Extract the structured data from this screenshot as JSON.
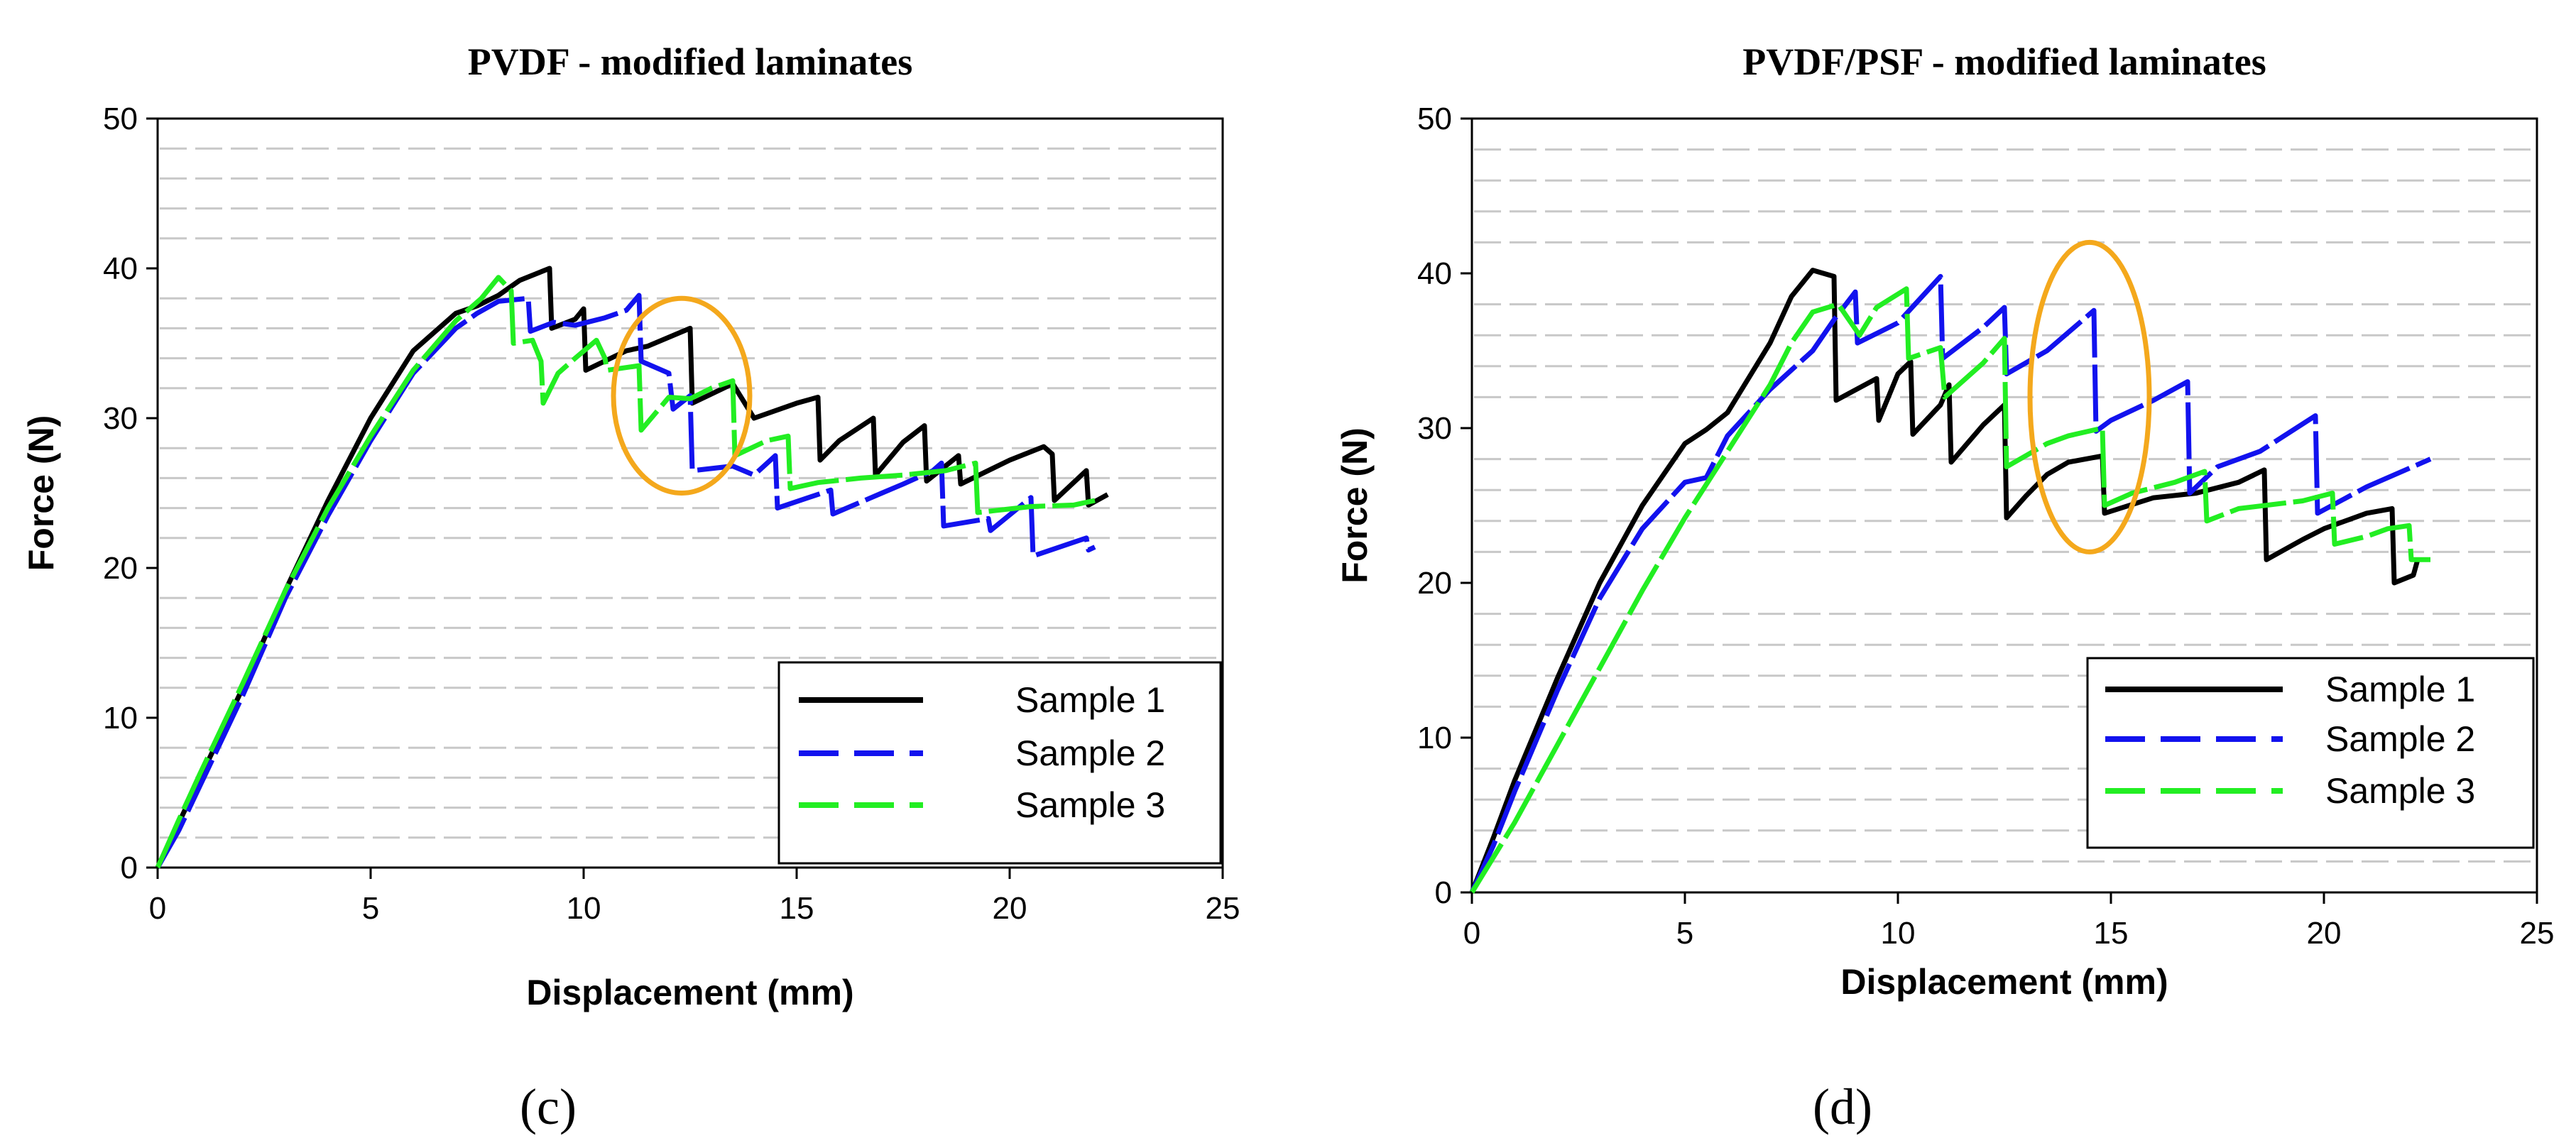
{
  "chart_data": [
    {
      "type": "line",
      "panel_label": "(c)",
      "title": "PVDF - modified laminates",
      "xlabel": "Displacement (mm)",
      "ylabel": "Force (N)",
      "xlim": [
        0,
        25
      ],
      "ylim": [
        0,
        50
      ],
      "xticks": [
        0,
        5,
        10,
        15,
        20,
        25
      ],
      "yticks": [
        0,
        10,
        20,
        30,
        40,
        50
      ],
      "grid": "horizontal dashed",
      "legend_position": "bottom-right",
      "highlight_ellipse": {
        "cx": 12.3,
        "cy": 31.5,
        "rx": 1.6,
        "ry": 6.5,
        "color": "#f4a81c"
      },
      "series": [
        {
          "name": "Sample 1",
          "color": "#000000",
          "dash": "solid",
          "points": [
            [
              0,
              0
            ],
            [
              0.5,
              3
            ],
            [
              1,
              6
            ],
            [
              2,
              12
            ],
            [
              3,
              18.5
            ],
            [
              4,
              24.5
            ],
            [
              5,
              30
            ],
            [
              6,
              34.5
            ],
            [
              7,
              37
            ],
            [
              7.5,
              37.5
            ],
            [
              8,
              38.2
            ],
            [
              8.5,
              39.2
            ],
            [
              9.2,
              40
            ],
            [
              9.25,
              36
            ],
            [
              9.8,
              36.6
            ],
            [
              10,
              37.3
            ],
            [
              10.05,
              33.2
            ],
            [
              11,
              34.5
            ],
            [
              11.5,
              34.8
            ],
            [
              12.5,
              36
            ],
            [
              12.55,
              31
            ],
            [
              13.5,
              32.3
            ],
            [
              14,
              30
            ],
            [
              15,
              31
            ],
            [
              15.5,
              31.4
            ],
            [
              15.55,
              27.2
            ],
            [
              16,
              28.5
            ],
            [
              16.8,
              30
            ],
            [
              16.85,
              26.2
            ],
            [
              17.5,
              28.4
            ],
            [
              18,
              29.5
            ],
            [
              18.05,
              25.8
            ],
            [
              18.8,
              27.5
            ],
            [
              18.85,
              25.6
            ],
            [
              20,
              27.2
            ],
            [
              20.8,
              28.1
            ],
            [
              21,
              27.6
            ],
            [
              21.05,
              24.5
            ],
            [
              21.8,
              26.5
            ],
            [
              21.85,
              24.2
            ],
            [
              22.3,
              24.9
            ]
          ]
        },
        {
          "name": "Sample 2",
          "color": "#1212ee",
          "dash": "dash",
          "points": [
            [
              0,
              0
            ],
            [
              0.5,
              2.5
            ],
            [
              1,
              5.5
            ],
            [
              2,
              11.5
            ],
            [
              3,
              18
            ],
            [
              4,
              23.5
            ],
            [
              5,
              28.5
            ],
            [
              6,
              33
            ],
            [
              7,
              36
            ],
            [
              7.5,
              37
            ],
            [
              8,
              37.8
            ],
            [
              8.7,
              38
            ],
            [
              8.75,
              35.8
            ],
            [
              9.3,
              36.4
            ],
            [
              9.8,
              36.2
            ],
            [
              10.5,
              36.7
            ],
            [
              11,
              37.2
            ],
            [
              11.3,
              38.2
            ],
            [
              11.35,
              33.8
            ],
            [
              12,
              33
            ],
            [
              12.1,
              30.6
            ],
            [
              12.5,
              31.5
            ],
            [
              12.55,
              26.5
            ],
            [
              13.5,
              26.8
            ],
            [
              14,
              26.2
            ],
            [
              14.5,
              27.5
            ],
            [
              14.55,
              24
            ],
            [
              15.8,
              25.2
            ],
            [
              15.85,
              23.6
            ],
            [
              17,
              25
            ],
            [
              17.5,
              25.6
            ],
            [
              18.2,
              26.5
            ],
            [
              18.4,
              27
            ],
            [
              18.45,
              22.8
            ],
            [
              19.5,
              23.3
            ],
            [
              19.55,
              22.5
            ],
            [
              20.5,
              24.7
            ],
            [
              20.55,
              20.8
            ],
            [
              21.8,
              22
            ],
            [
              21.85,
              21.2
            ],
            [
              22,
              21.4
            ]
          ]
        },
        {
          "name": "Sample 3",
          "color": "#22ee22",
          "dash": "dash",
          "points": [
            [
              0,
              0
            ],
            [
              0.5,
              3.2
            ],
            [
              1,
              6.3
            ],
            [
              2,
              12.3
            ],
            [
              3,
              18.5
            ],
            [
              4,
              24
            ],
            [
              5,
              28.8
            ],
            [
              6,
              33.2
            ],
            [
              7,
              36.5
            ],
            [
              7.6,
              38
            ],
            [
              8,
              39.4
            ],
            [
              8.3,
              38.5
            ],
            [
              8.35,
              35
            ],
            [
              8.8,
              35.2
            ],
            [
              9,
              33.8
            ],
            [
              9.05,
              31
            ],
            [
              9.4,
              33
            ],
            [
              9.8,
              34
            ],
            [
              10.3,
              35.2
            ],
            [
              10.5,
              34
            ],
            [
              10.55,
              33.2
            ],
            [
              11.3,
              33.5
            ],
            [
              11.35,
              29.2
            ],
            [
              12,
              31.4
            ],
            [
              12.5,
              31.3
            ],
            [
              13,
              32
            ],
            [
              13.5,
              32.5
            ],
            [
              13.55,
              27.5
            ],
            [
              14.3,
              28.5
            ],
            [
              14.8,
              28.8
            ],
            [
              14.85,
              25.3
            ],
            [
              15.5,
              25.7
            ],
            [
              16.5,
              26
            ],
            [
              17.5,
              26.2
            ],
            [
              18.5,
              26.5
            ],
            [
              19.2,
              27
            ],
            [
              19.25,
              23.7
            ],
            [
              20.5,
              24.1
            ],
            [
              21.5,
              24.2
            ],
            [
              22,
              24.5
            ]
          ]
        }
      ]
    },
    {
      "type": "line",
      "panel_label": "(d)",
      "title": "PVDF/PSF - modified laminates",
      "xlabel": "Displacement (mm)",
      "ylabel": "Force (N)",
      "xlim": [
        0,
        25
      ],
      "ylim": [
        0,
        50
      ],
      "xticks": [
        0,
        5,
        10,
        15,
        20,
        25
      ],
      "yticks": [
        0,
        10,
        20,
        30,
        40,
        50
      ],
      "grid": "horizontal dashed",
      "legend_position": "bottom-right",
      "highlight_ellipse": {
        "cx": 14.5,
        "cy": 32,
        "rx": 1.4,
        "ry": 10,
        "color": "#f4a81c"
      },
      "series": [
        {
          "name": "Sample 1",
          "color": "#000000",
          "dash": "solid",
          "points": [
            [
              0,
              0
            ],
            [
              0.5,
              3.5
            ],
            [
              1,
              7.2
            ],
            [
              2,
              13.8
            ],
            [
              3,
              20
            ],
            [
              4,
              25
            ],
            [
              5,
              29
            ],
            [
              5.5,
              29.9
            ],
            [
              6,
              31
            ],
            [
              7,
              35.5
            ],
            [
              7.5,
              38.5
            ],
            [
              8,
              40.2
            ],
            [
              8.5,
              39.8
            ],
            [
              8.55,
              31.8
            ],
            [
              9.5,
              33.2
            ],
            [
              9.55,
              30.5
            ],
            [
              10,
              33.5
            ],
            [
              10.3,
              34.3
            ],
            [
              10.35,
              29.6
            ],
            [
              11,
              31.5
            ],
            [
              11.2,
              32.8
            ],
            [
              11.25,
              27.8
            ],
            [
              12,
              30.2
            ],
            [
              12.5,
              31.5
            ],
            [
              12.55,
              24.2
            ],
            [
              13,
              25.6
            ],
            [
              13.5,
              27
            ],
            [
              14,
              27.8
            ],
            [
              14.8,
              28.2
            ],
            [
              14.85,
              24.5
            ],
            [
              16,
              25.5
            ],
            [
              17,
              25.8
            ],
            [
              18,
              26.5
            ],
            [
              18.6,
              27.3
            ],
            [
              18.65,
              21.5
            ],
            [
              19.5,
              22.8
            ],
            [
              20,
              23.5
            ],
            [
              21,
              24.5
            ],
            [
              21.6,
              24.8
            ],
            [
              21.65,
              20
            ],
            [
              22.1,
              20.5
            ],
            [
              22.2,
              21.5
            ]
          ]
        },
        {
          "name": "Sample 2",
          "color": "#1212ee",
          "dash": "dash",
          "points": [
            [
              0,
              0
            ],
            [
              0.5,
              3
            ],
            [
              1,
              6.5
            ],
            [
              2,
              13
            ],
            [
              3,
              19
            ],
            [
              4,
              23.5
            ],
            [
              5,
              26.5
            ],
            [
              5.5,
              26.8
            ],
            [
              6,
              29.5
            ],
            [
              7,
              32.5
            ],
            [
              8,
              35
            ],
            [
              8.5,
              37
            ],
            [
              9,
              38.8
            ],
            [
              9.05,
              35.5
            ],
            [
              10,
              36.8
            ],
            [
              11,
              39.8
            ],
            [
              11.05,
              34.5
            ],
            [
              12,
              36.5
            ],
            [
              12.5,
              37.8
            ],
            [
              12.55,
              33.5
            ],
            [
              13.5,
              35
            ],
            [
              14.6,
              37.6
            ],
            [
              14.65,
              29.8
            ],
            [
              15,
              30.5
            ],
            [
              16,
              31.8
            ],
            [
              16.8,
              33
            ],
            [
              16.85,
              25.8
            ],
            [
              17.5,
              27.5
            ],
            [
              18.5,
              28.5
            ],
            [
              19.8,
              30.8
            ],
            [
              19.85,
              24.5
            ],
            [
              21,
              26.2
            ],
            [
              22.5,
              28
            ]
          ]
        },
        {
          "name": "Sample 3",
          "color": "#22ee22",
          "dash": "dash",
          "points": [
            [
              0,
              0
            ],
            [
              1,
              4.5
            ],
            [
              2,
              9.5
            ],
            [
              3,
              14.5
            ],
            [
              4,
              19.5
            ],
            [
              5,
              24.2
            ],
            [
              6,
              28.5
            ],
            [
              7,
              32.8
            ],
            [
              7.5,
              35.5
            ],
            [
              8,
              37.5
            ],
            [
              8.6,
              38
            ],
            [
              9.1,
              36
            ],
            [
              9.5,
              37.8
            ],
            [
              10.2,
              39
            ],
            [
              10.25,
              34.5
            ],
            [
              11,
              35.2
            ],
            [
              11.1,
              32
            ],
            [
              12,
              34.2
            ],
            [
              12.5,
              35.8
            ],
            [
              12.55,
              27.5
            ],
            [
              13.5,
              29
            ],
            [
              14,
              29.5
            ],
            [
              14.8,
              30
            ],
            [
              14.85,
              25
            ],
            [
              15.5,
              25.8
            ],
            [
              16.5,
              26.5
            ],
            [
              17.2,
              27.2
            ],
            [
              17.25,
              24
            ],
            [
              18,
              24.8
            ],
            [
              19.5,
              25.3
            ],
            [
              20.2,
              25.8
            ],
            [
              20.25,
              22.5
            ],
            [
              21,
              23
            ],
            [
              21.5,
              23.5
            ],
            [
              22,
              23.7
            ],
            [
              22.05,
              21.5
            ],
            [
              22.5,
              21.5
            ]
          ]
        }
      ]
    }
  ],
  "legend": {
    "entries": [
      "Sample 1",
      "Sample 2",
      "Sample 3"
    ]
  }
}
